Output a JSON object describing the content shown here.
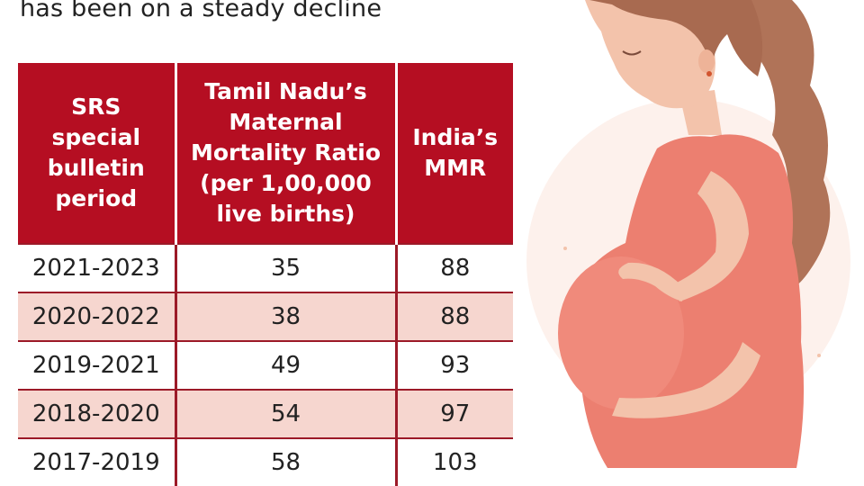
{
  "subtitle": "has been on a steady decline",
  "table": {
    "headers": [
      "SRS\nspecial\nbulletin\nperiod",
      "Tamil Nadu’s\nMaternal\nMortality Ratio\n(per 1,00,000\nlive births)",
      "India’s\nMMR"
    ],
    "rows": [
      {
        "period": "2021-2023",
        "tn": "35",
        "india": "88"
      },
      {
        "period": "2020-2022",
        "tn": "38",
        "india": "88"
      },
      {
        "period": "2019-2021",
        "tn": "49",
        "india": "93"
      },
      {
        "period": "2018-2020",
        "tn": "54",
        "india": "97"
      },
      {
        "period": "2017-2019",
        "tn": "58",
        "india": "103"
      }
    ]
  },
  "colors": {
    "header_bg": "#b50e22",
    "row_shade": "#f6d6cf",
    "dress": "#ec7f70",
    "hair": "#b07358",
    "skin": "#f3c3ab"
  }
}
